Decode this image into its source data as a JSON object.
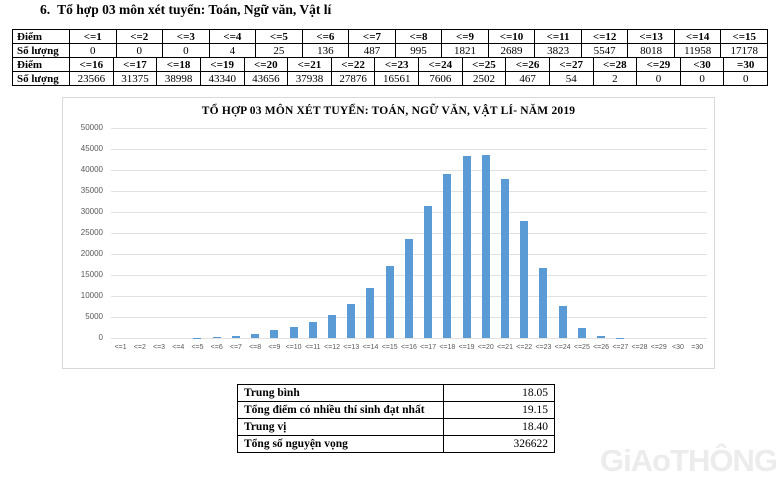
{
  "page": {
    "heading_number": "6.",
    "heading_text": "Tổ hợp 03 môn xét tuyển: Toán, Ngữ văn, Vật lí"
  },
  "tables": {
    "row_header_score": "Điểm",
    "row_header_count": "Số lượng",
    "table1": {
      "scores": [
        "<=1",
        "<=2",
        "<=3",
        "<=4",
        "<=5",
        "<=6",
        "<=7",
        "<=8",
        "<=9",
        "<=10",
        "<=11",
        "<=12",
        "<=13",
        "<=14",
        "<=15"
      ],
      "counts": [
        "0",
        "0",
        "0",
        "4",
        "25",
        "136",
        "487",
        "995",
        "1821",
        "2689",
        "3823",
        "5547",
        "8018",
        "11958",
        "17178"
      ]
    },
    "table2": {
      "scores": [
        "<=16",
        "<=17",
        "<=18",
        "<=19",
        "<=20",
        "<=21",
        "<=22",
        "<=23",
        "<=24",
        "<=25",
        "<=26",
        "<=27",
        "<=28",
        "<=29",
        "<30",
        "=30"
      ],
      "counts": [
        "23566",
        "31375",
        "38998",
        "43340",
        "43656",
        "37938",
        "27876",
        "16561",
        "7606",
        "2502",
        "467",
        "54",
        "2",
        "0",
        "0",
        "0"
      ]
    }
  },
  "chart_data": {
    "type": "bar",
    "title": "TỔ HỢP 03 MÔN XÉT TUYỂN: TOÁN, NGỮ VĂN, VẬT LÍ- NĂM 2019",
    "categories": [
      "<=1",
      "<=2",
      "<=3",
      "<=4",
      "<=5",
      "<=6",
      "<=7",
      "<=8",
      "<=9",
      "<=10",
      "<=11",
      "<=12",
      "<=13",
      "<=14",
      "<=15",
      "<=16",
      "<=17",
      "<=18",
      "<=19",
      "<=20",
      "<=21",
      "<=22",
      "<=23",
      "<=24",
      "<=25",
      "<=26",
      "<=27",
      "<=28",
      "<=29",
      "<30",
      "=30"
    ],
    "values": [
      0,
      0,
      0,
      4,
      25,
      136,
      487,
      995,
      1821,
      2689,
      3823,
      5547,
      8018,
      11958,
      17178,
      23566,
      31375,
      38998,
      43340,
      43656,
      37938,
      27876,
      16561,
      7606,
      2502,
      467,
      54,
      2,
      0,
      0,
      0
    ],
    "xlabel": "",
    "ylabel": "",
    "ylim": [
      0,
      50000
    ],
    "ytick_step": 5000,
    "grid": true,
    "legend_position": "none",
    "bar_color": "#5B9BD5"
  },
  "summary": {
    "rows": [
      {
        "label": "Trung bình",
        "value": "18.05"
      },
      {
        "label": "Tổng điểm có nhiều thí sinh đạt nhất",
        "value": "19.15"
      },
      {
        "label": "Trung vị",
        "value": "18.40"
      },
      {
        "label": "Tổng số nguyện vọng",
        "value": "326622"
      }
    ]
  },
  "watermark": {
    "text": "GiAoTHÔNG"
  },
  "colors": {
    "bar": "#5B9BD5",
    "gridline": "#E2E2E2",
    "axis_text": "#595959",
    "table_border": "#000000",
    "chart_border": "#D9D9D9",
    "watermark": "#ECECEC"
  }
}
